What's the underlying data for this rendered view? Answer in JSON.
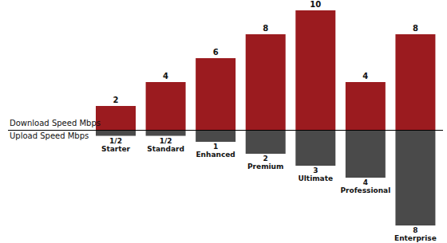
{
  "chart_data": {
    "type": "bar",
    "categories": [
      "Starter",
      "Standard",
      "Enhanced",
      "Premium",
      "Ultimate",
      "Professional",
      "Enterprise"
    ],
    "series": [
      {
        "name": "Download Speed Mbps",
        "color": "#9b1b1f",
        "values": [
          2,
          4,
          6,
          8,
          10,
          4,
          8
        ]
      },
      {
        "name": "Upload Speed Mbps",
        "color": "#4a4a4a",
        "values": [
          0.5,
          0.5,
          1,
          2,
          3,
          4,
          8
        ],
        "value_labels": [
          "1/2",
          "1/2",
          "1",
          "2",
          "3",
          "4",
          "8"
        ]
      }
    ],
    "data_labels": true,
    "tick_labels": false
  }
}
